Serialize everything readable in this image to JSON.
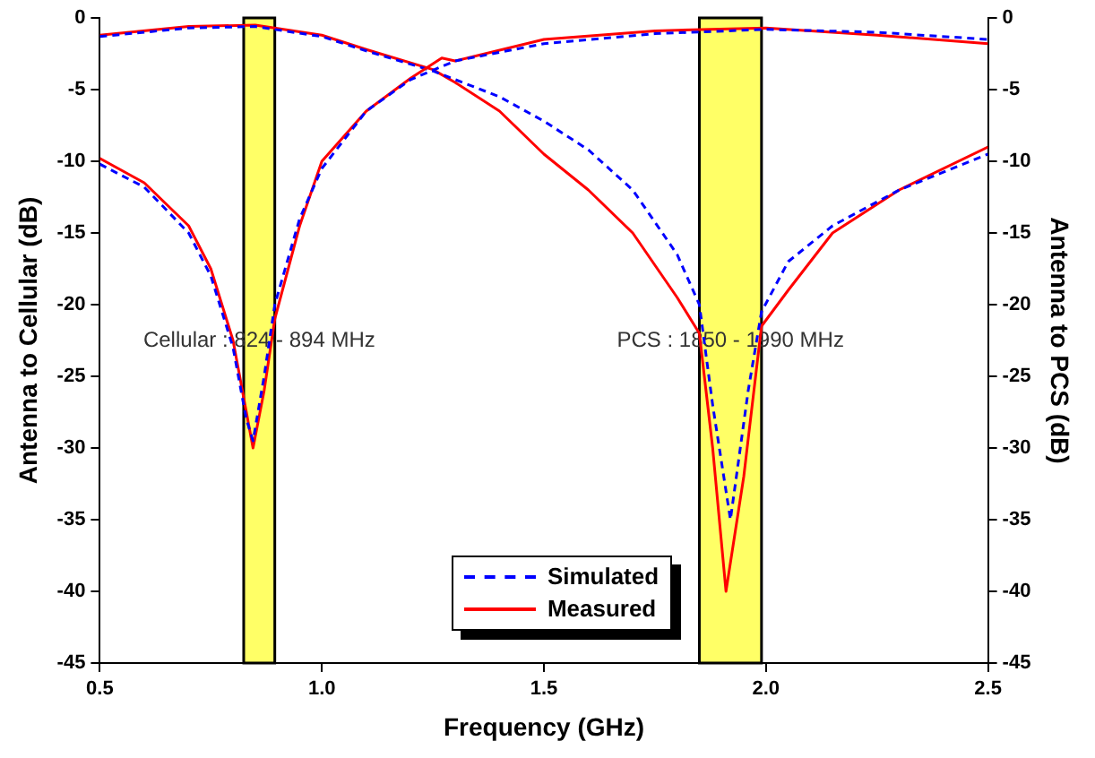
{
  "chart_data": {
    "type": "line",
    "xlabel": "Frequency (GHz)",
    "ylabel": "Antenna to Cellular (dB)",
    "y2label": "Antenna to PCS (dB)",
    "xlim": [
      0.5,
      2.5
    ],
    "xticks": [
      {
        "value": 0.5,
        "label": "0.5"
      },
      {
        "value": 1,
        "label": "1.0"
      },
      {
        "value": 1.5,
        "label": "1.5"
      },
      {
        "value": 2,
        "label": "2.0"
      },
      {
        "value": 2.5,
        "label": "2.5"
      }
    ],
    "ylim": [
      -45,
      0
    ],
    "yticks": [
      -45,
      -40,
      -35,
      -30,
      -25,
      -20,
      -15,
      -10,
      -5,
      0
    ],
    "y2lim": [
      -45,
      0
    ],
    "y2ticks": [
      -45,
      -40,
      -35,
      -30,
      -25,
      -20,
      -15,
      -10,
      -5,
      0
    ],
    "grid": false,
    "legend": "bottom",
    "marker": "none",
    "bands": [
      {
        "axis": "x",
        "from": 0.824,
        "to": 0.894,
        "color": "#ffff66"
      },
      {
        "axis": "x",
        "from": 1.85,
        "to": 1.99,
        "color": "#ffff66"
      }
    ],
    "annotations": [
      "Cellular : 824 - 894 MHz",
      "PCS : 1850 - 1990 MHz"
    ],
    "series": [
      {
        "name": "Simulated",
        "color": "#0000ff",
        "line_style": "dashed",
        "x": [
          0.5,
          0.6,
          0.7,
          0.75,
          0.8,
          0.83,
          0.845,
          0.87,
          0.894,
          0.95,
          1.0,
          1.1,
          1.2,
          1.3,
          1.5,
          1.75,
          2.0,
          2.25,
          2.5
        ],
        "values": [
          -10.2,
          -11.8,
          -15,
          -18,
          -23,
          -28,
          -29.5,
          -25,
          -20,
          -14,
          -10.5,
          -6.5,
          -4.3,
          -3,
          -1.8,
          -1.1,
          -0.8,
          -1,
          -1.5
        ]
      },
      {
        "name": "Measured",
        "color": "#ff0000",
        "line_style": "solid",
        "x": [
          0.5,
          0.6,
          0.7,
          0.75,
          0.8,
          0.83,
          0.845,
          0.87,
          0.894,
          0.95,
          1.0,
          1.1,
          1.2,
          1.27,
          1.3,
          1.5,
          1.75,
          2.0,
          2.25,
          2.5
        ],
        "values": [
          -9.8,
          -11.5,
          -14.5,
          -17.5,
          -22.5,
          -27.5,
          -30,
          -26,
          -21,
          -14.5,
          -10,
          -6.5,
          -4.2,
          -2.8,
          -3,
          -1.5,
          -0.9,
          -0.7,
          -1.2,
          -1.8
        ]
      },
      {
        "color": "#0000ff",
        "line_style": "dashed",
        "x": [
          0.5,
          0.7,
          0.85,
          1.0,
          1.1,
          1.25,
          1.4,
          1.5,
          1.6,
          1.7,
          1.8,
          1.85,
          1.88,
          1.92,
          1.96,
          1.99,
          2.05,
          2.15,
          2.3,
          2.5
        ],
        "values": [
          -1.3,
          -0.7,
          -0.6,
          -1.3,
          -2.3,
          -3.7,
          -5.5,
          -7.2,
          -9.2,
          -12,
          -16.5,
          -20,
          -27,
          -35,
          -26,
          -20.5,
          -17,
          -14.5,
          -12,
          -9.5
        ]
      },
      {
        "color": "#ff0000",
        "line_style": "solid",
        "x": [
          0.5,
          0.7,
          0.85,
          1.0,
          1.1,
          1.25,
          1.3,
          1.4,
          1.5,
          1.6,
          1.7,
          1.8,
          1.85,
          1.88,
          1.91,
          1.95,
          1.99,
          2.05,
          2.15,
          2.3,
          2.5
        ],
        "values": [
          -1.2,
          -0.6,
          -0.5,
          -1.2,
          -2.2,
          -3.6,
          -4.5,
          -6.5,
          -9.5,
          -12,
          -15,
          -19.5,
          -22,
          -30,
          -40,
          -32,
          -21.5,
          -19,
          -15,
          -12,
          -9
        ]
      }
    ]
  }
}
